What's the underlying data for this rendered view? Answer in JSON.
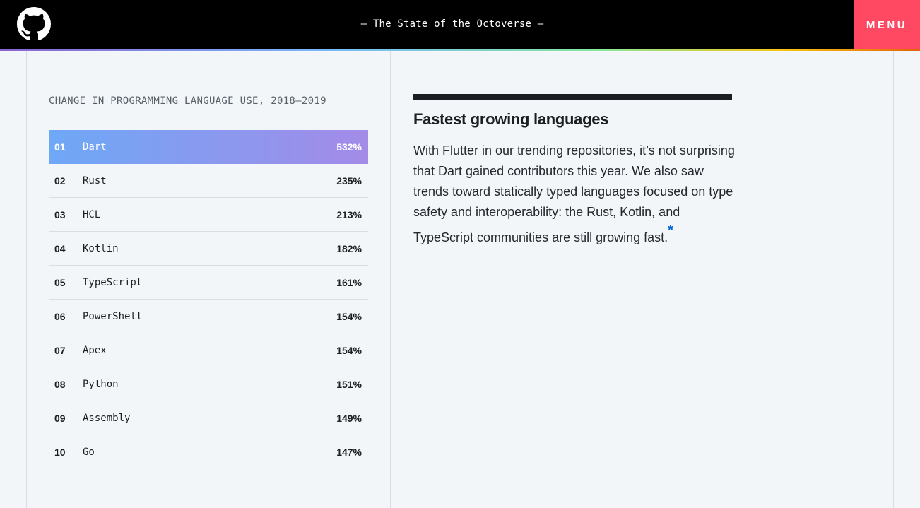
{
  "header": {
    "title": "— The State of the Octoverse —",
    "menu_label": "MENU",
    "logo_icon": "github-octocat-icon"
  },
  "chart": {
    "caption": "CHANGE IN PROGRAMMING LANGUAGE USE, 2018–2019",
    "highlight_gradient": [
      "#6ea8f6",
      "#a38be8"
    ],
    "rows": [
      {
        "rank": "01",
        "name": "Dart",
        "change": "532%"
      },
      {
        "rank": "02",
        "name": "Rust",
        "change": "235%"
      },
      {
        "rank": "03",
        "name": "HCL",
        "change": "213%"
      },
      {
        "rank": "04",
        "name": "Kotlin",
        "change": "182%"
      },
      {
        "rank": "05",
        "name": "TypeScript",
        "change": "161%"
      },
      {
        "rank": "06",
        "name": "PowerShell",
        "change": "154%"
      },
      {
        "rank": "07",
        "name": "Apex",
        "change": "154%"
      },
      {
        "rank": "08",
        "name": "Python",
        "change": "151%"
      },
      {
        "rank": "09",
        "name": "Assembly",
        "change": "149%"
      },
      {
        "rank": "10",
        "name": "Go",
        "change": "147%"
      }
    ]
  },
  "article": {
    "heading": "Fastest growing languages",
    "body": "With Flutter in our trending repositories, it’s not surprising that Dart gained contributors this year. We also saw trends toward statically typed languages focused on type safety and interoperability: the Rust, Kotlin, and TypeScript communities are still growing fast.",
    "footnote": "*"
  },
  "colors": {
    "menu_bg": "#ff4862",
    "footnote": "#0366d6"
  }
}
